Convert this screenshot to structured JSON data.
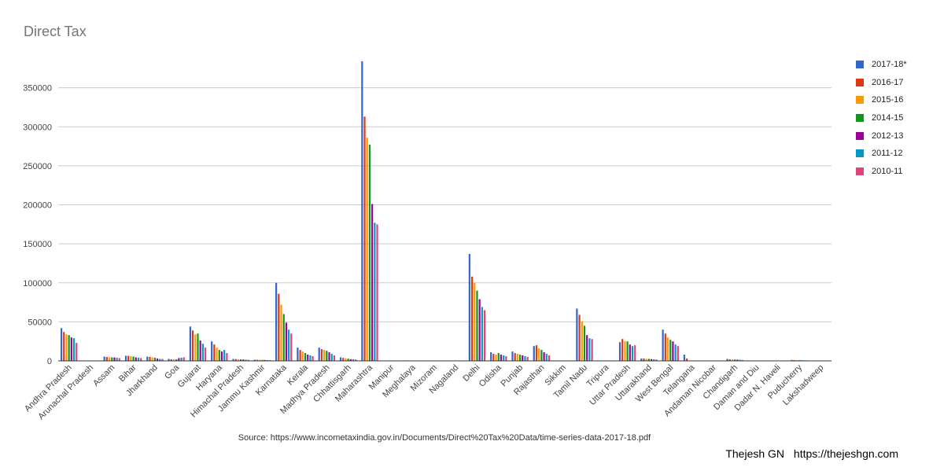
{
  "title": "Direct Tax",
  "source_text": "Source: https://www.incometaxindia.gov.in/Documents/Direct%20Tax%20Data/time-series-data-2017-18.pdf",
  "credit": {
    "name": "Thejesh GN",
    "url": "https://thejeshgn.com"
  },
  "chart_data": {
    "type": "bar",
    "title": "Direct Tax",
    "xlabel": "",
    "ylabel": "",
    "ylim": [
      0,
      400000
    ],
    "yticks": [
      0,
      50000,
      100000,
      150000,
      200000,
      250000,
      300000,
      350000
    ],
    "ytick_labels": [
      "0",
      "50000",
      "100000",
      "150000",
      "200000",
      "250000",
      "300000",
      "350000"
    ],
    "grid": true,
    "legend_position": "right",
    "categories": [
      "Andhra Pradesh",
      "Arunachal Pradesh",
      "Assam",
      "Bihar",
      "Jharkhand",
      "Goa",
      "Gujarat",
      "Haryana",
      "Himachal Pradesh",
      "Jammu Kashmir",
      "Karnataka",
      "Kerala",
      "Madhya Pradesh",
      "Chhattisgarh",
      "Maharashtra",
      "Manipur",
      "Meghalaya",
      "Mizoram",
      "Nagaland",
      "Delhi",
      "Odisha",
      "Punjab",
      "Rajasthan",
      "Sikkim",
      "Tamil Nadu",
      "Tripura",
      "Uttar Pradesh",
      "Uttarakhand",
      "West Bengal",
      "Telangana",
      "Andaman Nicobar",
      "Chandigarh",
      "Daman and Diu",
      "Dadar N. Haveli",
      "Puducherry",
      "Lakshadweep"
    ],
    "series": [
      {
        "name": "2017-18*",
        "color": "#3366cc",
        "values": [
          42000,
          300,
          5500,
          6500,
          5500,
          2500,
          44000,
          25000,
          2500,
          1500,
          100000,
          17000,
          17000,
          4500,
          384000,
          300,
          600,
          100,
          100,
          137000,
          11000,
          12000,
          19000,
          400,
          67000,
          500,
          24000,
          3000,
          40000,
          8000,
          200,
          2500,
          300,
          300,
          1200,
          50
        ]
      },
      {
        "name": "2016-17",
        "color": "#dc3912",
        "values": [
          37000,
          200,
          5000,
          6500,
          5000,
          2000,
          39000,
          21000,
          2300,
          1400,
          86000,
          14000,
          15000,
          3800,
          313000,
          300,
          600,
          100,
          100,
          108000,
          9000,
          10000,
          20000,
          400,
          59000,
          400,
          28000,
          3000,
          35000,
          3000,
          200,
          2000,
          300,
          300,
          1000,
          50
        ]
      },
      {
        "name": "2015-16",
        "color": "#ff9900",
        "values": [
          34000,
          200,
          4500,
          6000,
          4500,
          2000,
          34000,
          17000,
          2000,
          1300,
          72000,
          12000,
          14000,
          3200,
          286000,
          200,
          500,
          100,
          100,
          100000,
          8000,
          9000,
          16000,
          300,
          51000,
          400,
          25000,
          2600,
          30000,
          0,
          200,
          1800,
          300,
          300,
          900,
          50
        ]
      },
      {
        "name": "2014-15",
        "color": "#109618",
        "values": [
          33000,
          200,
          4500,
          5500,
          4000,
          2000,
          35000,
          14000,
          2000,
          1200,
          60000,
          10000,
          13000,
          2800,
          277000,
          200,
          500,
          100,
          100,
          90000,
          10000,
          8000,
          14000,
          300,
          45000,
          300,
          25000,
          2600,
          27000,
          0,
          200,
          1800,
          300,
          300,
          900,
          50
        ]
      },
      {
        "name": "2012-13",
        "color": "#990099",
        "values": [
          30000,
          200,
          4500,
          4500,
          3000,
          3500,
          26000,
          12000,
          1800,
          1200,
          49000,
          8000,
          11000,
          2200,
          201000,
          200,
          500,
          100,
          100,
          79000,
          8000,
          7000,
          11000,
          300,
          33000,
          300,
          21000,
          2200,
          25000,
          0,
          200,
          1600,
          200,
          300,
          800,
          50
        ]
      },
      {
        "name": "2011-12",
        "color": "#0099c6",
        "values": [
          29000,
          200,
          4000,
          4000,
          2500,
          4000,
          22000,
          14000,
          1600,
          1000,
          40000,
          7000,
          9000,
          2000,
          177000,
          200,
          400,
          100,
          100,
          69000,
          7000,
          6000,
          9000,
          300,
          29000,
          300,
          19000,
          2000,
          21000,
          0,
          200,
          1400,
          200,
          200,
          700,
          50
        ]
      },
      {
        "name": "2010-11",
        "color": "#dd4477",
        "values": [
          23000,
          200,
          3500,
          3500,
          2500,
          4500,
          17000,
          10000,
          1400,
          900,
          35000,
          6000,
          7000,
          1800,
          175000,
          200,
          400,
          100,
          100,
          65000,
          6000,
          5000,
          7000,
          200,
          28000,
          300,
          20000,
          1800,
          19000,
          0,
          200,
          1200,
          200,
          200,
          700,
          50
        ]
      }
    ]
  }
}
